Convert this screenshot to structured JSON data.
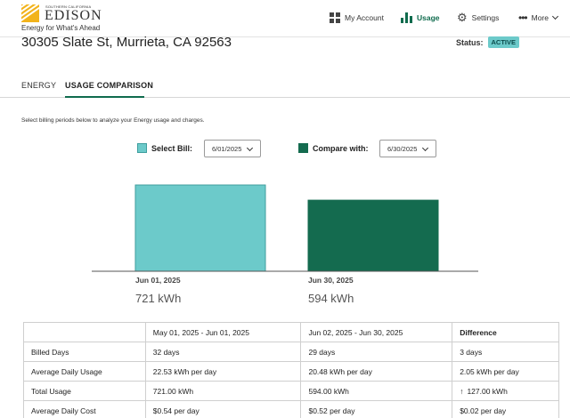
{
  "brand": {
    "small_text": "SOUTHERN CALIFORNIA",
    "name": "EDISON",
    "tagline": "Energy for What's Ahead"
  },
  "nav": {
    "my_account": "My Account",
    "usage": "Usage",
    "settings": "Settings",
    "more": "More",
    "icons": [
      "grid-icon",
      "bar-chart-icon",
      "gear-icon",
      "dots-icon",
      "chevron-down-icon"
    ]
  },
  "address": "30305 Slate St, Murrieta, CA 92563",
  "status": {
    "label": "Status:",
    "value": "ACTIVE"
  },
  "tabs": [
    {
      "label": "ENERGY",
      "active": false
    },
    {
      "label": "USAGE COMPARISON",
      "active": true
    }
  ],
  "instruction": "Select billing periods below to analyze your Energy usage and charges.",
  "selectors": {
    "select_bill_label": "Select Bill:",
    "select_bill_value": "6/01/2025",
    "compare_label": "Compare with:",
    "compare_value": "6/30/2025"
  },
  "colors": {
    "bill": "#6ccaca",
    "compare": "#146b4f",
    "accent": "#0f6b4d"
  },
  "chart_data": {
    "type": "bar",
    "categories": [
      "Jun 01, 2025",
      "Jun 30, 2025"
    ],
    "values": [
      721,
      594
    ],
    "value_labels": [
      "721 kWh",
      "594 kWh"
    ],
    "title": "",
    "xlabel": "",
    "ylabel": "",
    "ylim": [
      0,
      721
    ],
    "grid": false,
    "legend": "none"
  },
  "table": {
    "headers": [
      "",
      "May 01, 2025 - Jun 01, 2025",
      "Jun 02, 2025 - Jun 30, 2025",
      "Difference"
    ],
    "rows": [
      [
        "Billed Days",
        "32 days",
        "29 days",
        "3 days"
      ],
      [
        "Average Daily Usage",
        "22.53 kWh per day",
        "20.48 kWh per day",
        "2.05 kWh per day"
      ],
      [
        "Total Usage",
        "721.00 kWh",
        "594.00 kWh",
        "127.00 kWh"
      ],
      [
        "Average Daily Cost",
        "$0.54 per day",
        "$0.52 per day",
        "$0.02 per day"
      ]
    ]
  }
}
